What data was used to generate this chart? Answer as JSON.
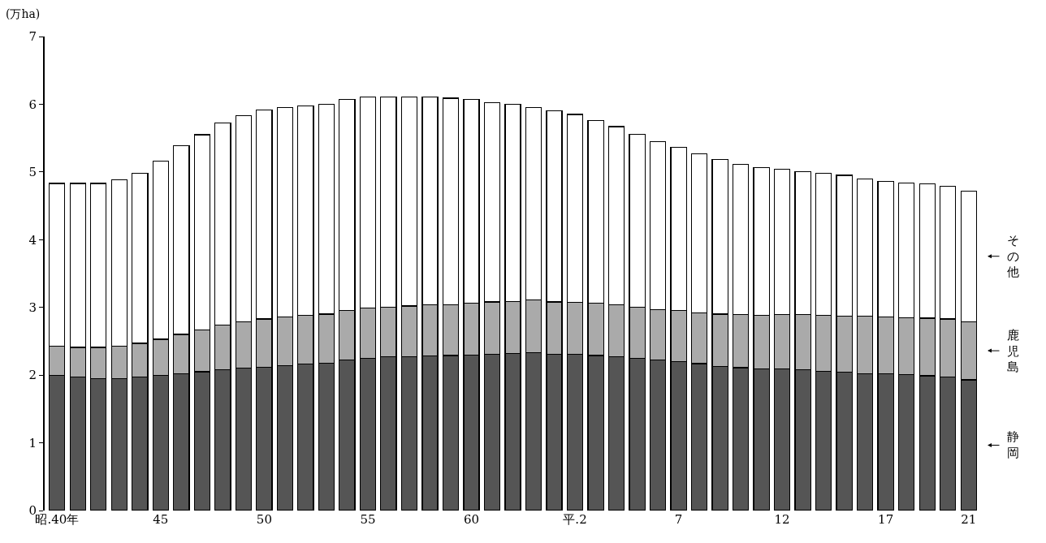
{
  "chart_data": {
    "type": "bar",
    "stacked": true,
    "ylabel": "(万ha)",
    "legend": "right",
    "categories": [
      "昭.40年",
      null,
      null,
      null,
      null,
      "45",
      null,
      null,
      null,
      null,
      "50",
      null,
      null,
      null,
      null,
      "55",
      null,
      null,
      null,
      null,
      "60",
      null,
      null,
      null,
      null,
      "平.2",
      null,
      null,
      null,
      null,
      "7",
      null,
      null,
      null,
      null,
      "12",
      null,
      null,
      null,
      null,
      "17",
      null,
      null,
      null,
      "21"
    ],
    "ylim": [
      0,
      7
    ],
    "yticks": [
      0,
      1,
      2,
      3,
      4,
      5,
      6,
      7
    ],
    "series": [
      {
        "name": "静岡",
        "color": "#555555",
        "values": [
          2.0,
          1.97,
          1.95,
          1.95,
          1.97,
          2.0,
          2.02,
          2.05,
          2.08,
          2.1,
          2.12,
          2.14,
          2.16,
          2.18,
          2.22,
          2.25,
          2.27,
          2.27,
          2.28,
          2.29,
          2.3,
          2.31,
          2.32,
          2.33,
          2.31,
          2.31,
          2.29,
          2.27,
          2.25,
          2.22,
          2.2,
          2.17,
          2.13,
          2.11,
          2.09,
          2.09,
          2.08,
          2.06,
          2.04,
          2.02,
          2.02,
          2.01,
          1.99,
          1.97,
          1.93
        ]
      },
      {
        "name": "鹿児島",
        "color": "#aaaaaa",
        "values": [
          0.43,
          0.44,
          0.46,
          0.48,
          0.5,
          0.53,
          0.58,
          0.62,
          0.66,
          0.69,
          0.71,
          0.72,
          0.72,
          0.72,
          0.73,
          0.74,
          0.73,
          0.75,
          0.76,
          0.75,
          0.76,
          0.77,
          0.77,
          0.78,
          0.77,
          0.76,
          0.77,
          0.77,
          0.75,
          0.75,
          0.75,
          0.75,
          0.77,
          0.78,
          0.79,
          0.8,
          0.81,
          0.82,
          0.83,
          0.85,
          0.84,
          0.84,
          0.85,
          0.86,
          0.86
        ]
      },
      {
        "name": "その他",
        "color": "#ffffff",
        "values": [
          2.4,
          2.42,
          2.42,
          2.45,
          2.51,
          2.63,
          2.79,
          2.88,
          2.98,
          3.04,
          3.09,
          3.09,
          3.1,
          3.1,
          3.12,
          3.12,
          3.11,
          3.09,
          3.07,
          3.05,
          3.01,
          2.94,
          2.91,
          2.84,
          2.82,
          2.78,
          2.7,
          2.63,
          2.56,
          2.48,
          2.41,
          2.35,
          2.28,
          2.22,
          2.18,
          2.15,
          2.11,
          2.1,
          2.08,
          2.03,
          2.0,
          1.99,
          1.98,
          1.96,
          1.93
        ]
      }
    ]
  }
}
